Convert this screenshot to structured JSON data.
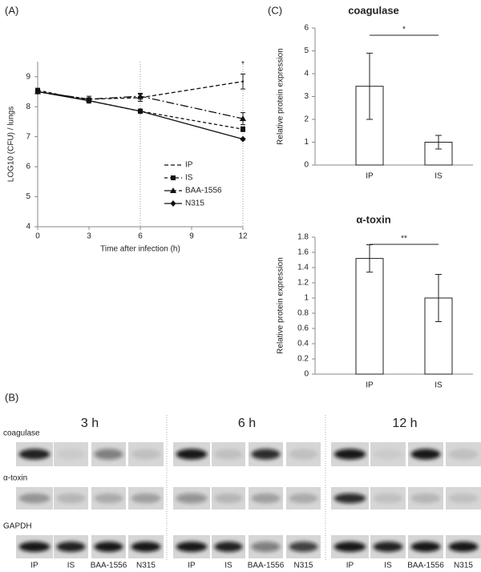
{
  "chart_data": [
    {
      "type": "line",
      "panel_label": "(A)",
      "x_label": "Time after infection (h)",
      "y_label": "LOG10 (CFU) / lungs",
      "x": [
        0,
        3,
        6,
        12
      ],
      "xlim": [
        0,
        12
      ],
      "xticks": [
        0,
        3,
        6,
        9,
        12
      ],
      "ylim": [
        4,
        9.5
      ],
      "yticks": [
        4,
        5,
        6,
        7,
        8,
        9
      ],
      "vlines": [
        6,
        12
      ],
      "annotation": "*",
      "series": [
        {
          "name": "IP",
          "color": "#111111",
          "dash": "5,3",
          "marker": "none",
          "values": [
            8.5,
            8.25,
            8.3,
            8.84
          ],
          "errors": [
            0.05,
            0.1,
            0.12,
            0.25
          ]
        },
        {
          "name": "IS",
          "color": "#111111",
          "dash": "4,3",
          "marker": "square",
          "values": [
            8.55,
            8.2,
            7.85,
            7.25
          ],
          "errors": [
            0.05,
            0.08,
            0.07,
            0.08
          ]
        },
        {
          "name": "BAA-1556",
          "color": "#111111",
          "dash": "10,3,2,3",
          "marker": "triangle",
          "values": [
            8.5,
            8.25,
            8.35,
            7.6
          ],
          "errors": [
            0.05,
            0.05,
            0.1,
            0.2
          ]
        },
        {
          "name": "N315",
          "color": "#111111",
          "dash": "none",
          "marker": "diamond",
          "values": [
            8.5,
            8.2,
            7.85,
            6.92
          ],
          "errors": [
            0.05,
            0.05,
            0.05,
            0.03
          ]
        }
      ]
    },
    {
      "type": "bar",
      "panel_label": "(C)",
      "title": "coagulase",
      "y_label": "Relative protein expression",
      "categories": [
        "IP",
        "IS"
      ],
      "values": [
        3.45,
        1.0
      ],
      "errors": [
        1.45,
        0.3
      ],
      "ylim": [
        0,
        6
      ],
      "yticks": [
        0,
        1,
        2,
        3,
        4,
        5,
        6
      ],
      "annotation": "*",
      "color": "#ffffff"
    },
    {
      "type": "bar",
      "title": "α-toxin",
      "y_label": "Relative protein expression",
      "categories": [
        "IP",
        "IS"
      ],
      "values": [
        1.52,
        1.0
      ],
      "errors": [
        0.18,
        0.31
      ],
      "ylim": [
        0,
        1.8
      ],
      "yticks": [
        0,
        0.2,
        0.4,
        0.6,
        0.8,
        1,
        1.2,
        1.4,
        1.6,
        1.8
      ],
      "annotation": "**",
      "color": "#ffffff"
    }
  ],
  "blot": {
    "panel_label": "(B)",
    "times": [
      "3 h",
      "6 h",
      "12 h"
    ],
    "rows": [
      "coagulase",
      "α-toxin",
      "GAPDH"
    ],
    "lanes": [
      "IP",
      "IS",
      "BAA-1556",
      "N315"
    ]
  }
}
